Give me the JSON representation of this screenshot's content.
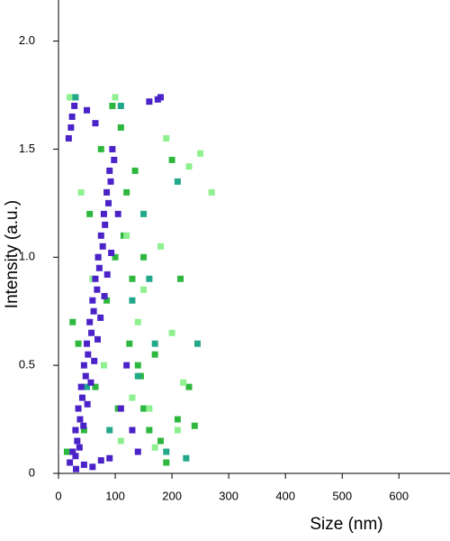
{
  "chart_data": {
    "type": "scatter",
    "xlabel": "Size (nm)",
    "ylabel": "Intensity (a.u.)",
    "xlim": [
      0,
      690
    ],
    "xticks": [
      0,
      100,
      200,
      300,
      400,
      500,
      600
    ],
    "ylim": [
      0,
      2.19
    ],
    "yticks": [
      0,
      0.5,
      {
        "value": 1,
        "label": "1.0"
      },
      1.5,
      {
        "value": 2,
        "label": "2.0"
      }
    ],
    "series": [
      {
        "color": "#2db83d",
        "x": [
          15,
          35,
          55,
          75,
          95,
          110,
          120,
          130,
          140,
          150,
          160,
          200,
          215,
          230,
          180,
          100,
          85,
          65,
          45,
          25,
          105,
          115,
          125,
          135,
          145,
          190,
          210,
          240,
          170,
          150
        ],
        "y": [
          0.1,
          0.6,
          1.2,
          1.5,
          1.7,
          1.6,
          1.3,
          0.9,
          0.5,
          0.3,
          0.2,
          1.45,
          0.9,
          0.4,
          0.15,
          1.0,
          0.8,
          0.4,
          0.2,
          0.7,
          0.3,
          1.1,
          0.6,
          1.4,
          0.45,
          0.05,
          0.25,
          0.22,
          0.55,
          1.0
        ]
      },
      {
        "color": "#8ef08e",
        "x": [
          20,
          40,
          60,
          80,
          100,
          120,
          140,
          160,
          180,
          200,
          220,
          250,
          270,
          190,
          210,
          230,
          110,
          130,
          150,
          170
        ],
        "y": [
          1.74,
          1.3,
          0.9,
          0.5,
          1.74,
          1.1,
          0.7,
          0.3,
          1.05,
          0.65,
          0.42,
          1.48,
          1.3,
          1.55,
          0.2,
          1.42,
          0.15,
          0.35,
          0.85,
          0.12
        ]
      },
      {
        "color": "#22a88a",
        "x": [
          30,
          50,
          70,
          90,
          110,
          130,
          150,
          170,
          190,
          210,
          225,
          245,
          140,
          160
        ],
        "y": [
          1.74,
          0.4,
          1.0,
          0.2,
          1.7,
          0.8,
          1.2,
          0.6,
          0.1,
          1.35,
          0.07,
          0.6,
          0.45,
          0.9
        ]
      },
      {
        "color": "#4b22c8",
        "x": [
          20,
          25,
          30,
          35,
          40,
          45,
          50,
          55,
          60,
          65,
          70,
          75,
          80,
          85,
          90,
          95,
          22,
          28,
          33,
          38,
          42,
          48,
          52,
          58,
          62,
          68,
          72,
          78,
          82,
          88,
          92,
          98,
          18,
          24,
          31,
          37,
          44,
          51,
          57,
          63,
          69,
          74,
          81,
          86,
          93,
          105,
          110,
          120,
          130,
          140,
          160,
          175,
          180,
          30,
          45,
          60,
          75,
          90,
          50,
          65
        ],
        "y": [
          0.05,
          0.1,
          0.2,
          0.3,
          0.4,
          0.5,
          0.6,
          0.7,
          0.8,
          0.9,
          1.0,
          1.1,
          1.2,
          1.3,
          1.4,
          1.5,
          1.6,
          1.7,
          0.15,
          0.25,
          0.35,
          0.45,
          0.55,
          0.65,
          0.75,
          0.85,
          0.95,
          1.05,
          1.15,
          1.25,
          1.35,
          1.45,
          1.55,
          1.65,
          0.02,
          0.12,
          0.22,
          0.32,
          0.42,
          0.52,
          0.62,
          0.72,
          0.82,
          0.92,
          1.02,
          1.2,
          0.3,
          0.5,
          0.2,
          0.1,
          1.72,
          1.73,
          1.74,
          0.08,
          0.04,
          0.03,
          0.06,
          0.07,
          1.68,
          1.62
        ]
      }
    ]
  }
}
